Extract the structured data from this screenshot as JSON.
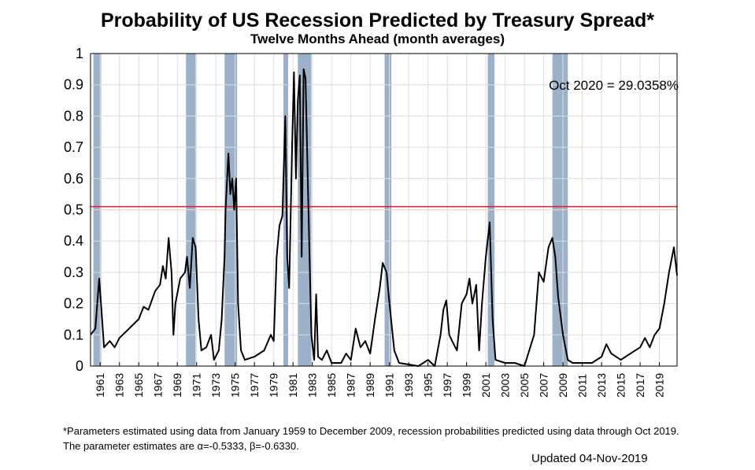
{
  "chart_data": {
    "type": "line",
    "title": "Probability of US Recession Predicted by Treasury Spread*",
    "subtitle": "Twelve Months Ahead (month averages)",
    "xlabel": "",
    "ylabel": "",
    "xlim": [
      1960,
      2020.83
    ],
    "ylim": [
      0,
      1
    ],
    "grid": true,
    "x_ticks": [
      "1961",
      "1963",
      "1965",
      "1967",
      "1969",
      "1971",
      "1973",
      "1975",
      "1977",
      "1979",
      "1981",
      "1983",
      "1985",
      "1987",
      "1989",
      "1991",
      "1993",
      "1995",
      "1997",
      "1999",
      "2001",
      "2003",
      "2005",
      "2007",
      "2009",
      "2011",
      "2013",
      "2015",
      "2017",
      "2019"
    ],
    "y_ticks": [
      "0",
      "0.1",
      "0.2",
      "0.3",
      "0.4",
      "0.5",
      "0.6",
      "0.7",
      "0.8",
      "0.9",
      "1"
    ],
    "annotation": "Oct 2020 = 29.0358%",
    "threshold": 0.51,
    "colors": {
      "line": "#000000",
      "threshold": "#e31a1c",
      "recession": "#9bb1c9"
    },
    "recessions": [
      [
        1960.3,
        1961.1
      ],
      [
        1969.9,
        1970.9
      ],
      [
        1973.9,
        1975.2
      ],
      [
        1980.0,
        1980.5
      ],
      [
        1981.5,
        1982.9
      ],
      [
        1990.5,
        1991.2
      ],
      [
        2001.2,
        2001.9
      ],
      [
        2007.9,
        2009.5
      ]
    ],
    "series": [
      {
        "points": [
          [
            1960.0,
            0.1
          ],
          [
            1960.5,
            0.12
          ],
          [
            1960.9,
            0.28
          ],
          [
            1961.2,
            0.15
          ],
          [
            1961.4,
            0.06
          ],
          [
            1962,
            0.08
          ],
          [
            1962.5,
            0.06
          ],
          [
            1963,
            0.09
          ],
          [
            1964,
            0.12
          ],
          [
            1965,
            0.15
          ],
          [
            1965.5,
            0.19
          ],
          [
            1966,
            0.18
          ],
          [
            1966.7,
            0.24
          ],
          [
            1967.2,
            0.26
          ],
          [
            1967.5,
            0.32
          ],
          [
            1967.8,
            0.28
          ],
          [
            1968.1,
            0.41
          ],
          [
            1968.4,
            0.3
          ],
          [
            1968.6,
            0.1
          ],
          [
            1968.8,
            0.2
          ],
          [
            1969.3,
            0.28
          ],
          [
            1969.8,
            0.3
          ],
          [
            1970.0,
            0.35
          ],
          [
            1970.3,
            0.25
          ],
          [
            1970.6,
            0.41
          ],
          [
            1970.9,
            0.38
          ],
          [
            1971.2,
            0.15
          ],
          [
            1971.5,
            0.05
          ],
          [
            1972,
            0.06
          ],
          [
            1972.5,
            0.1
          ],
          [
            1972.8,
            0.02
          ],
          [
            1973.3,
            0.05
          ],
          [
            1973.6,
            0.15
          ],
          [
            1973.9,
            0.35
          ],
          [
            1974.0,
            0.5
          ],
          [
            1974.3,
            0.68
          ],
          [
            1974.5,
            0.55
          ],
          [
            1974.7,
            0.6
          ],
          [
            1974.9,
            0.5
          ],
          [
            1975.1,
            0.6
          ],
          [
            1975.3,
            0.2
          ],
          [
            1975.6,
            0.05
          ],
          [
            1976,
            0.02
          ],
          [
            1977,
            0.03
          ],
          [
            1978,
            0.05
          ],
          [
            1978.7,
            0.1
          ],
          [
            1979,
            0.08
          ],
          [
            1979.3,
            0.35
          ],
          [
            1979.6,
            0.45
          ],
          [
            1979.9,
            0.48
          ],
          [
            1980.2,
            0.8
          ],
          [
            1980.4,
            0.35
          ],
          [
            1980.6,
            0.25
          ],
          [
            1980.9,
            0.7
          ],
          [
            1981.1,
            0.94
          ],
          [
            1981.3,
            0.6
          ],
          [
            1981.5,
            0.85
          ],
          [
            1981.7,
            0.93
          ],
          [
            1981.9,
            0.35
          ],
          [
            1982.1,
            0.95
          ],
          [
            1982.3,
            0.92
          ],
          [
            1982.6,
            0.5
          ],
          [
            1982.9,
            0.1
          ],
          [
            1983.2,
            0.02
          ],
          [
            1983.4,
            0.23
          ],
          [
            1983.6,
            0.03
          ],
          [
            1984,
            0.02
          ],
          [
            1984.5,
            0.05
          ],
          [
            1985,
            0.01
          ],
          [
            1986,
            0.01
          ],
          [
            1986.5,
            0.04
          ],
          [
            1987,
            0.02
          ],
          [
            1987.5,
            0.12
          ],
          [
            1988,
            0.06
          ],
          [
            1988.5,
            0.08
          ],
          [
            1989,
            0.04
          ],
          [
            1989.5,
            0.15
          ],
          [
            1990,
            0.25
          ],
          [
            1990.3,
            0.33
          ],
          [
            1990.7,
            0.3
          ],
          [
            1991,
            0.2
          ],
          [
            1991.5,
            0.05
          ],
          [
            1992,
            0.01
          ],
          [
            1994,
            0.0
          ],
          [
            1995,
            0.02
          ],
          [
            1995.7,
            0.0
          ],
          [
            1996.3,
            0.1
          ],
          [
            1996.6,
            0.18
          ],
          [
            1996.9,
            0.21
          ],
          [
            1997.2,
            0.1
          ],
          [
            1997.5,
            0.08
          ],
          [
            1998,
            0.05
          ],
          [
            1998.5,
            0.2
          ],
          [
            1999,
            0.23
          ],
          [
            1999.3,
            0.28
          ],
          [
            1999.6,
            0.2
          ],
          [
            2000,
            0.26
          ],
          [
            2000.3,
            0.05
          ],
          [
            2000.6,
            0.2
          ],
          [
            2001,
            0.35
          ],
          [
            2001.4,
            0.46
          ],
          [
            2001.7,
            0.15
          ],
          [
            2002,
            0.02
          ],
          [
            2003,
            0.01
          ],
          [
            2004,
            0.01
          ],
          [
            2005,
            0.0
          ],
          [
            2006,
            0.1
          ],
          [
            2006.5,
            0.3
          ],
          [
            2007,
            0.27
          ],
          [
            2007.5,
            0.38
          ],
          [
            2007.9,
            0.41
          ],
          [
            2008.2,
            0.35
          ],
          [
            2008.5,
            0.22
          ],
          [
            2009,
            0.1
          ],
          [
            2009.5,
            0.02
          ],
          [
            2010,
            0.01
          ],
          [
            2011,
            0.01
          ],
          [
            2012,
            0.01
          ],
          [
            2013,
            0.03
          ],
          [
            2013.5,
            0.07
          ],
          [
            2014,
            0.04
          ],
          [
            2015,
            0.02
          ],
          [
            2016,
            0.04
          ],
          [
            2017,
            0.06
          ],
          [
            2017.5,
            0.09
          ],
          [
            2018,
            0.06
          ],
          [
            2018.5,
            0.1
          ],
          [
            2019,
            0.12
          ],
          [
            2019.5,
            0.2
          ],
          [
            2020,
            0.3
          ],
          [
            2020.5,
            0.38
          ],
          [
            2020.83,
            0.29
          ]
        ]
      }
    ]
  },
  "footnote_line1": "*Parameters estimated using data from January 1959 to December 2009, recession probabilities predicted using data through Oct 2019.",
  "footnote_line2": "The parameter estimates are α=-0.5333, β=-0.6330.",
  "updated": "Updated 04-Nov-2019"
}
